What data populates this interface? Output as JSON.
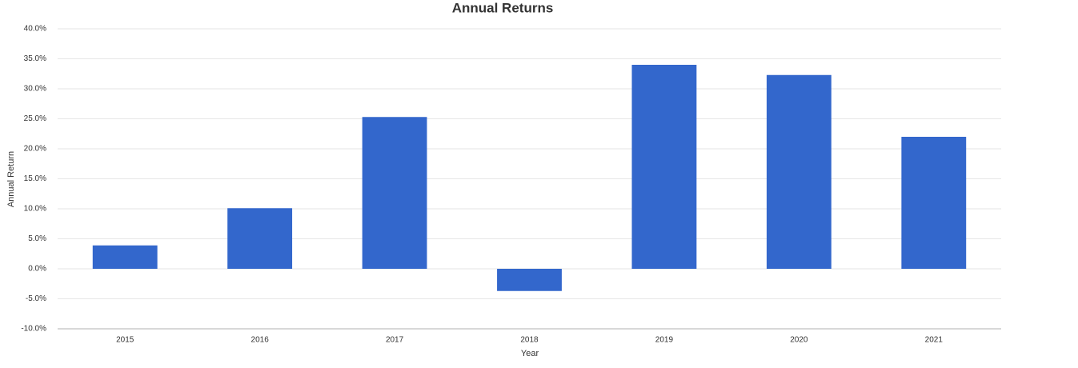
{
  "chart_data": {
    "type": "bar",
    "title": "Annual Returns",
    "x_label": "Year",
    "y_label": "Annual Return",
    "categories": [
      "2015",
      "2016",
      "2017",
      "2018",
      "2019",
      "2020",
      "2021"
    ],
    "values": [
      3.9,
      10.1,
      25.3,
      -3.7,
      34.0,
      32.3,
      22.0
    ],
    "color": "#3367cc",
    "ylim": [
      -10,
      40
    ],
    "yticks": [
      {
        "value": -10,
        "label": "-10.0%"
      },
      {
        "value": -5,
        "label": "-5.0%"
      },
      {
        "value": 0,
        "label": "0.0%"
      },
      {
        "value": 5,
        "label": "5.0%"
      },
      {
        "value": 10,
        "label": "10.0%"
      },
      {
        "value": 15,
        "label": "15.0%"
      },
      {
        "value": 20,
        "label": "20.0%"
      },
      {
        "value": 25,
        "label": "25.0%"
      },
      {
        "value": 30,
        "label": "30.0%"
      },
      {
        "value": 35,
        "label": "35.0%"
      },
      {
        "value": 40,
        "label": "40.0%"
      }
    ],
    "grid": true
  }
}
